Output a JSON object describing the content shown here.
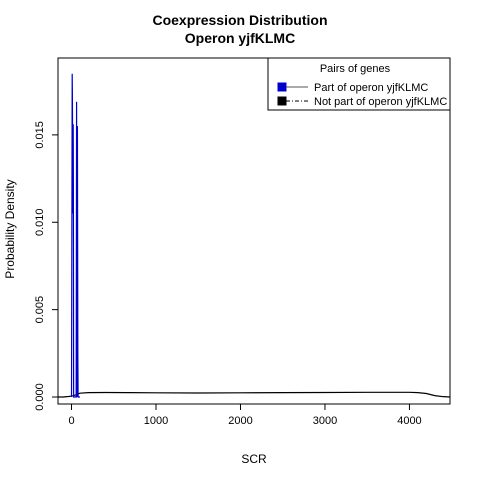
{
  "chart_data": {
    "type": "line",
    "title": "Coexpression Distribution",
    "subtitle": "Operon yjfKLMC",
    "xlabel": "SCR",
    "ylabel": "Probability Density",
    "xlim": [
      -160,
      4480
    ],
    "ylim": [
      -0.0004,
      0.0194
    ],
    "xticks": [
      0,
      1000,
      2000,
      3000,
      4000
    ],
    "xtick_labels": [
      "0",
      "1000",
      "2000",
      "3000",
      "4000"
    ],
    "yticks": [
      0.0,
      0.005,
      0.01,
      0.015
    ],
    "ytick_labels": [
      "0.000",
      "0.005",
      "0.010",
      "0.015"
    ],
    "legend": {
      "title": "Pairs of genes",
      "placement": "top-right",
      "entries": [
        "Part of operon yjfKLMC",
        "Not part of operon yjfKLMC"
      ]
    },
    "series": [
      {
        "name": "Part of operon yjfKLMC",
        "color": "#0000cc",
        "x": [
          0,
          8,
          10,
          12,
          15,
          18,
          20,
          22,
          25,
          30,
          40,
          55,
          60,
          62,
          65,
          70,
          75,
          78,
          82,
          85,
          90,
          95,
          100
        ],
        "y": [
          0.0,
          0.0185,
          0.0175,
          0.0157,
          0.0105,
          0.0125,
          0.0156,
          0.0125,
          0.0,
          0.0,
          0.0,
          0.0,
          0.0169,
          0.0025,
          0.0,
          0.0155,
          0.0025,
          0.0,
          0.0,
          0.0,
          0.0,
          0.0,
          0.0
        ]
      },
      {
        "name": "Not part of operon yjfKLMC",
        "color": "#000000",
        "x": [
          -160,
          -100,
          -50,
          0,
          50,
          100,
          200,
          400,
          700,
          1000,
          1500,
          2000,
          2500,
          3000,
          3500,
          4000,
          4100,
          4200,
          4300,
          4400,
          4480
        ],
        "y": [
          0.0,
          0.0,
          2e-05,
          5e-05,
          0.00012,
          0.00022,
          0.00025,
          0.00026,
          0.00025,
          0.00024,
          0.00023,
          0.00024,
          0.00025,
          0.00026,
          0.00027,
          0.00027,
          0.00025,
          0.0002,
          8e-05,
          2e-05,
          0.0
        ]
      }
    ]
  }
}
